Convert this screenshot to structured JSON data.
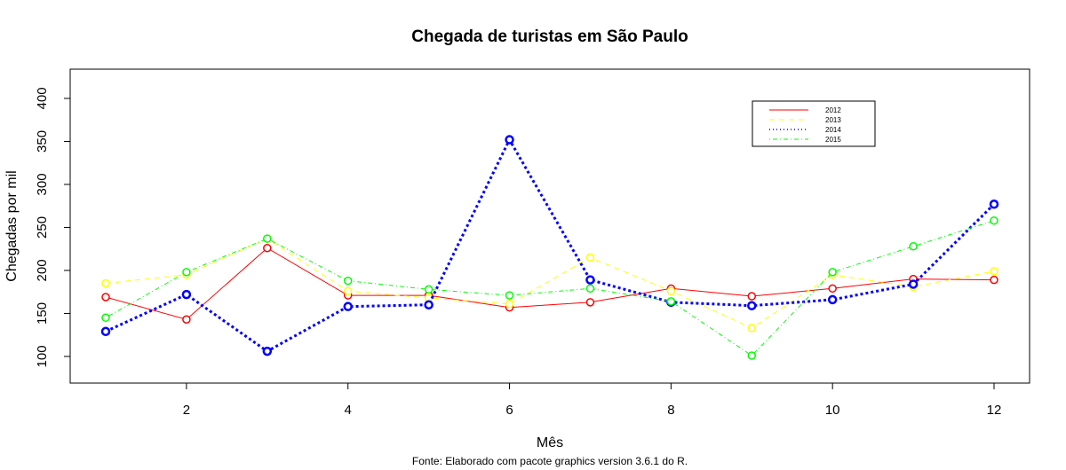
{
  "chart_data": {
    "type": "line",
    "title": "Chegada de turistas em São Paulo",
    "xlabel": "Mês",
    "ylabel": "Chegadas por mil",
    "caption": "Fonte: Elaborado com pacote graphics version 3.6.1 do R.",
    "x": [
      1,
      2,
      3,
      4,
      5,
      6,
      7,
      8,
      9,
      10,
      11,
      12
    ],
    "xticks": [
      2,
      4,
      6,
      8,
      10,
      12
    ],
    "yticks": [
      100,
      150,
      200,
      250,
      300,
      350,
      400
    ],
    "xlim": [
      0.56,
      12.44
    ],
    "ylim": [
      69,
      434
    ],
    "legend_position": "top-right",
    "grid": false,
    "series": [
      {
        "name": "2012",
        "color": "#ff0000",
        "style": "solid",
        "line_width": 1,
        "values": [
          169,
          143,
          226,
          171,
          171,
          157,
          163,
          179,
          170,
          179,
          190,
          189
        ]
      },
      {
        "name": "2013",
        "color": "#ffff00",
        "style": "dashed",
        "line_width": 1,
        "values": [
          185,
          195,
          237,
          176,
          168,
          161,
          215,
          176,
          133,
          195,
          181,
          199
        ]
      },
      {
        "name": "2014",
        "color": "#0000ff",
        "style": "dotted",
        "line_width": 3,
        "values": [
          129,
          172,
          106,
          158,
          160,
          352,
          189,
          163,
          159,
          166,
          184,
          277
        ]
      },
      {
        "name": "2015",
        "color": "#00ff00",
        "style": "dotdash",
        "line_width": 1,
        "values": [
          145,
          198,
          237,
          188,
          178,
          171,
          179,
          164,
          101,
          198,
          228,
          258
        ]
      }
    ]
  }
}
